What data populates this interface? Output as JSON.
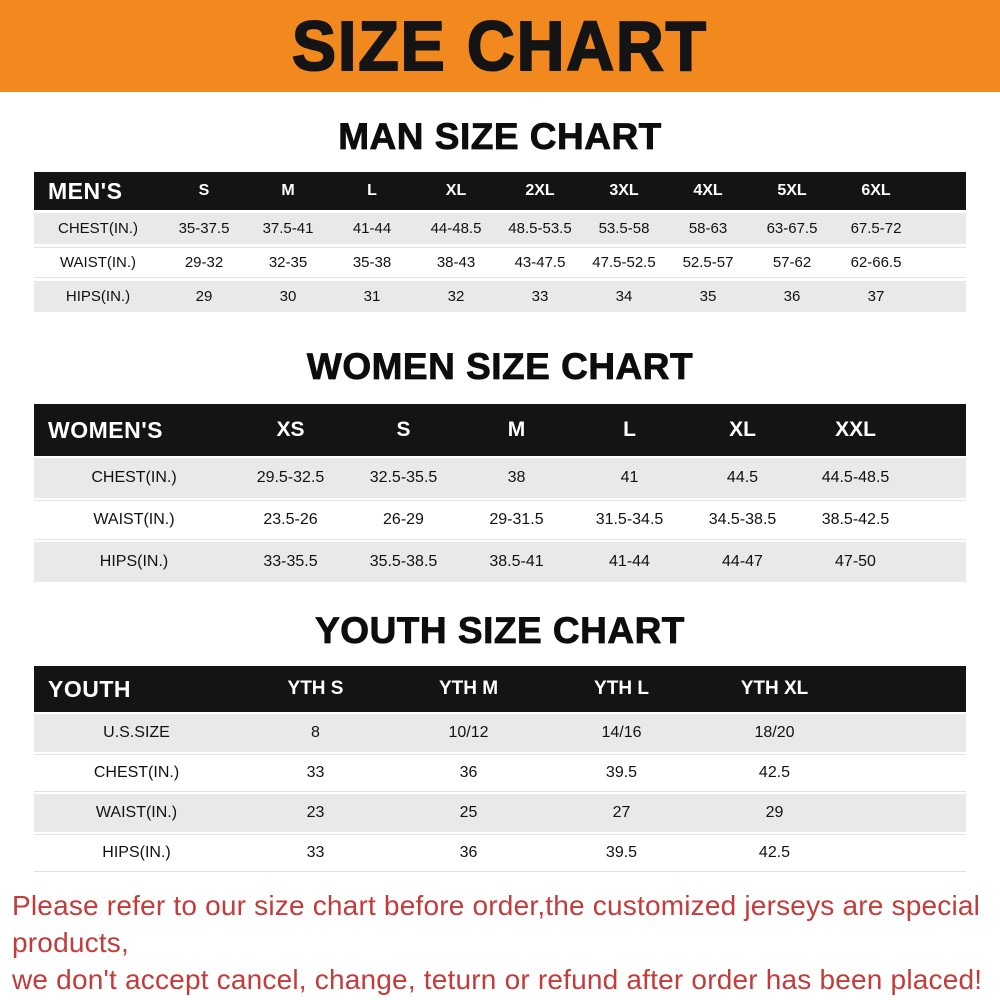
{
  "banner": {
    "title": "SIZE CHART",
    "bg_color": "#f2891f",
    "text_color": "#141414"
  },
  "chart_data": [
    {
      "type": "table",
      "title": "MAN SIZE CHART",
      "columns": [
        "MEN'S",
        "S",
        "M",
        "L",
        "XL",
        "2XL",
        "3XL",
        "4XL",
        "5XL",
        "6XL"
      ],
      "rows": [
        [
          "CHEST(IN.)",
          "35-37.5",
          "37.5-41",
          "41-44",
          "44-48.5",
          "48.5-53.5",
          "53.5-58",
          "58-63",
          "63-67.5",
          "67.5-72"
        ],
        [
          "WAIST(IN.)",
          "29-32",
          "32-35",
          "35-38",
          "38-43",
          "43-47.5",
          "47.5-52.5",
          "52.5-57",
          "57-62",
          "62-66.5"
        ],
        [
          "HIPS(IN.)",
          "29",
          "30",
          "31",
          "32",
          "33",
          "34",
          "35",
          "36",
          "37"
        ]
      ]
    },
    {
      "type": "table",
      "title": "WOMEN SIZE CHART",
      "columns": [
        "WOMEN'S",
        "XS",
        "S",
        "M",
        "L",
        "XL",
        "XXL"
      ],
      "rows": [
        [
          "CHEST(IN.)",
          "29.5-32.5",
          "32.5-35.5",
          "38",
          "41",
          "44.5",
          "44.5-48.5"
        ],
        [
          "WAIST(IN.)",
          "23.5-26",
          "26-29",
          "29-31.5",
          "31.5-34.5",
          "34.5-38.5",
          "38.5-42.5"
        ],
        [
          "HIPS(IN.)",
          "33-35.5",
          "35.5-38.5",
          "38.5-41",
          "41-44",
          "44-47",
          "47-50"
        ]
      ]
    },
    {
      "type": "table",
      "title": "YOUTH SIZE CHART",
      "columns": [
        "YOUTH",
        "YTH S",
        "YTH M",
        "YTH L",
        "YTH XL"
      ],
      "rows": [
        [
          "U.S.SIZE",
          "8",
          "10/12",
          "14/16",
          "18/20"
        ],
        [
          "CHEST(IN.)",
          "33",
          "36",
          "39.5",
          "42.5"
        ],
        [
          "WAIST(IN.)",
          "23",
          "25",
          "27",
          "29"
        ],
        [
          "HIPS(IN.)",
          "33",
          "36",
          "39.5",
          "42.5"
        ]
      ]
    }
  ],
  "footer": {
    "line1": "Please refer to our size chart before order,the customized jerseys are special products,",
    "line2": "we don't accept cancel, change, teturn or refund after order has been placed!",
    "text_color": "#c43b3b"
  },
  "style": {
    "table_header_bg": "#141414",
    "table_header_text": "#ffffff",
    "alt_row_bg": "#e9e9e9"
  }
}
